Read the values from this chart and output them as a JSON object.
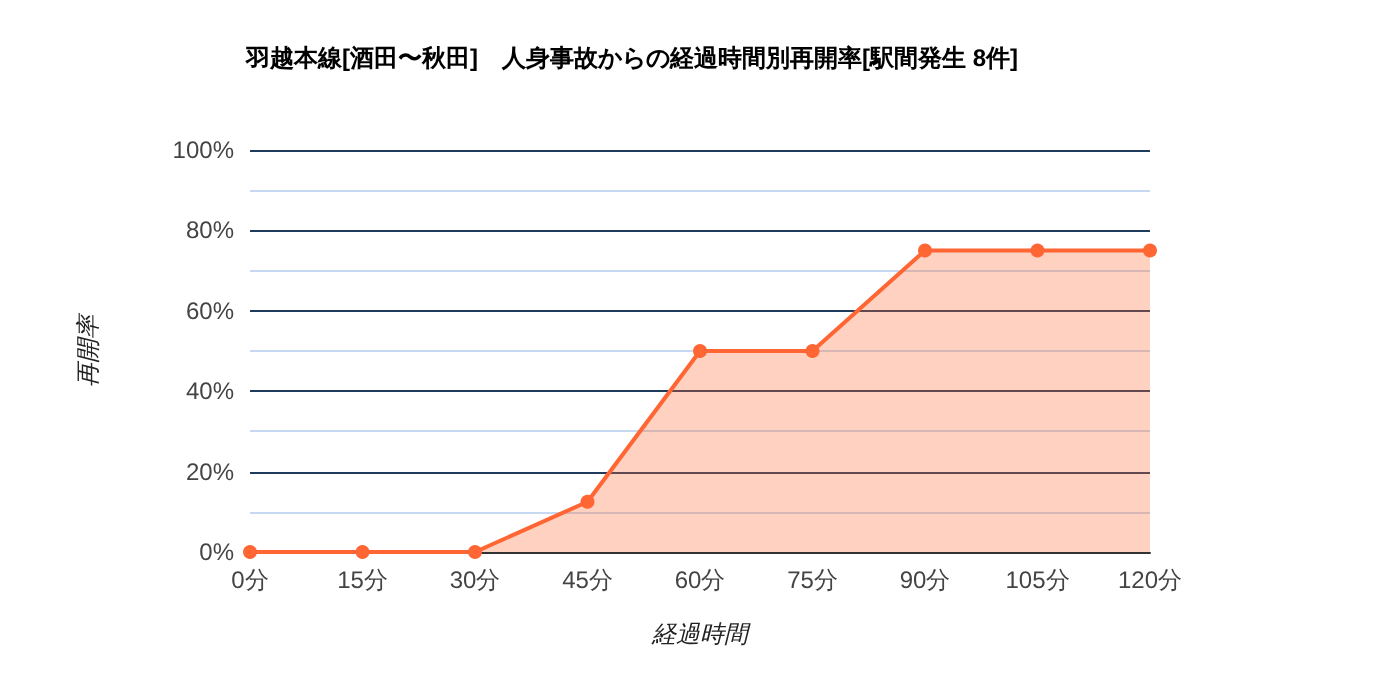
{
  "chart_data": {
    "type": "area",
    "title": "羽越本線[酒田〜秋田]　人身事故からの経過時間別再開率[駅間発生 8件]",
    "categories": [
      "0分",
      "15分",
      "30分",
      "45分",
      "60分",
      "75分",
      "90分",
      "105分",
      "120分"
    ],
    "series": [
      {
        "color": "#ff6633",
        "values": [
          0,
          0,
          0,
          12.5,
          50,
          50,
          75,
          75,
          75
        ]
      }
    ],
    "xlabel": "経過時間",
    "ylabel": "再開率",
    "ylim": [
      0,
      100
    ],
    "yticks": [
      {
        "value": 0,
        "label": "0%"
      },
      {
        "value": 10,
        "label": null
      },
      {
        "value": 20,
        "label": "20%"
      },
      {
        "value": 30,
        "label": null
      },
      {
        "value": 40,
        "label": "40%"
      },
      {
        "value": 50,
        "label": null
      },
      {
        "value": 60,
        "label": "60%"
      },
      {
        "value": 70,
        "label": null
      },
      {
        "value": 80,
        "label": "80%"
      },
      {
        "value": 90,
        "label": null
      },
      {
        "value": 100,
        "label": "100%"
      }
    ],
    "grid": "y",
    "marker": "circle"
  }
}
